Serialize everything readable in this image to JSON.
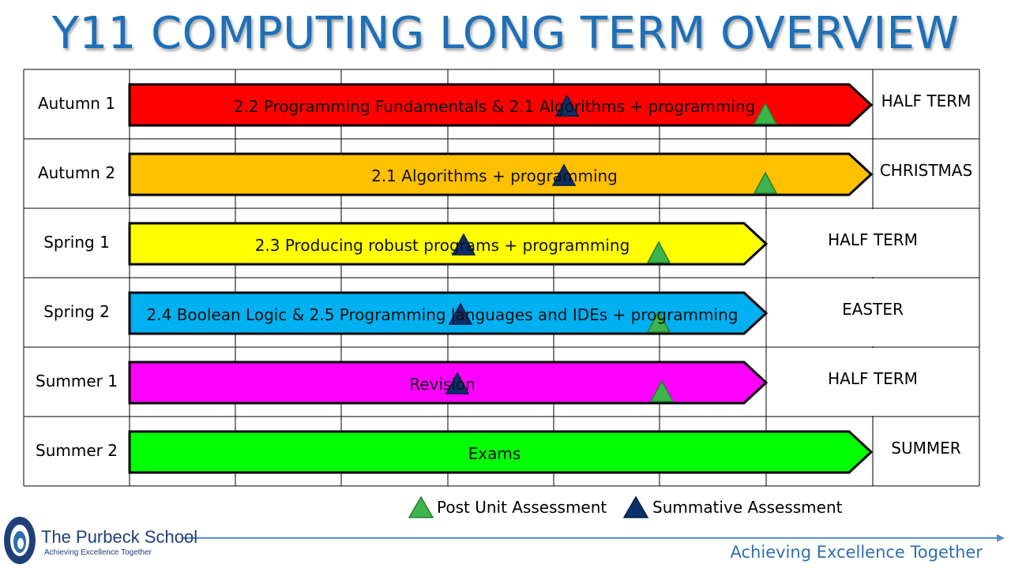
{
  "title": "Y11 COMPUTING LONG TERM OVERVIEW",
  "terms": [
    {
      "label": "Autumn 1",
      "unit": "2.2 Programming Fundamentals & 2.1 Algorithms + programming",
      "color": "#ff0000",
      "holiday": "HALF TERM"
    },
    {
      "label": "Autumn 2",
      "unit": "2.1 Algorithms + programming",
      "color": "#ffc000",
      "holiday": "CHRISTMAS"
    },
    {
      "label": "Spring 1",
      "unit": "2.3 Producing robust programs + programming",
      "color": "#ffff00",
      "holiday": "HALF TERM"
    },
    {
      "label": "Spring 2",
      "unit": "2.4 Boolean Logic & 2.5 Programming languages and IDEs + programming",
      "color": "#00b0f0",
      "holiday": "EASTER"
    },
    {
      "label": "Summer 1",
      "unit": "Revision",
      "color": "#ff00ff",
      "holiday": "HALF TERM"
    },
    {
      "label": "Summer 2",
      "unit": "Exams",
      "color": "#00ff00",
      "holiday": "SUMMER"
    }
  ],
  "legend": {
    "post_unit": "Post Unit Assessment",
    "summative": "Summative Assessment",
    "post_unit_color": "#3cb54a",
    "summative_color": "#0d2f6b"
  },
  "footer": {
    "school_name": "The Purbeck School",
    "school_motto": "Achieving Excellence Together",
    "tagline": "Achieving Excellence Together",
    "accent": "#2f6fb0"
  }
}
